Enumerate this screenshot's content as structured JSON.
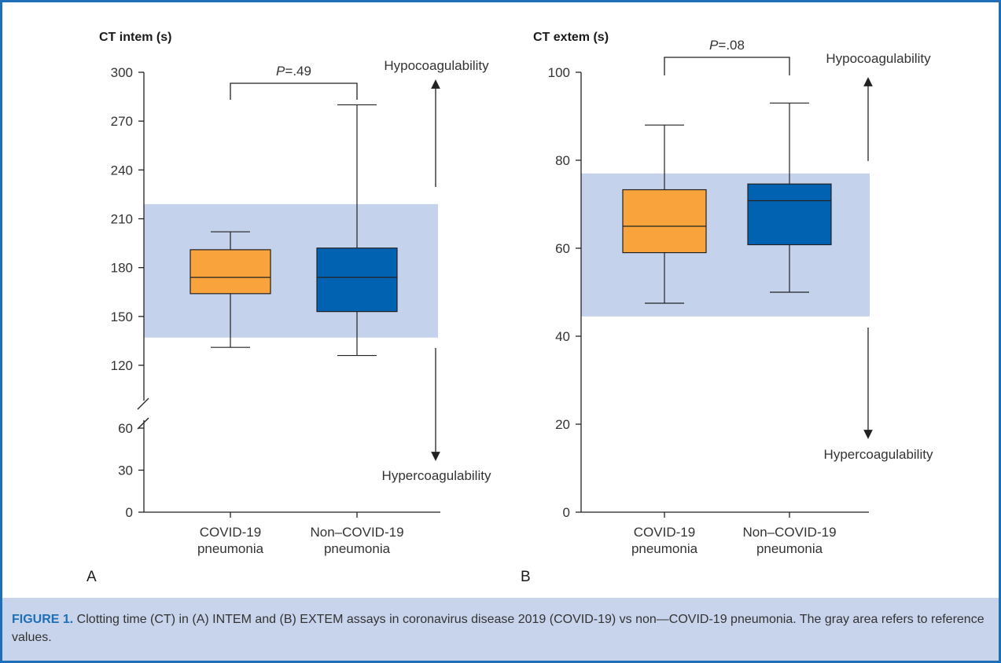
{
  "figure": {
    "caption_label": "FIGURE 1.",
    "caption_text": " Clotting time (CT) in (A) INTEM and (B) EXTEM assays in coronavirus disease 2019 (COVID-19) vs non—COVID-19 pneumonia. The gray area refers to reference values.",
    "colors": {
      "covid": "#f8a33c",
      "non_covid": "#0262b2",
      "reference_band": "#c5d2ec",
      "frame": "#1e6fb5"
    }
  },
  "chart_data": [
    {
      "type": "box",
      "panel_label": "A",
      "ylabel": "CT intem (s)",
      "axis_break": true,
      "ylim_lower": [
        0,
        60
      ],
      "ylim_upper": [
        120,
        300
      ],
      "yticks": [
        0,
        30,
        60,
        120,
        150,
        180,
        210,
        240,
        270,
        300
      ],
      "reference_band": [
        137,
        219
      ],
      "categories": [
        [
          "COVID-19",
          "pneumonia"
        ],
        [
          "Non–COVID-19",
          "pneumonia"
        ]
      ],
      "boxes": [
        {
          "whisker_low": 131,
          "q1": 164,
          "median": 174,
          "q3": 191,
          "whisker_high": 202
        },
        {
          "whisker_low": 126,
          "q1": 153,
          "median": 174,
          "q3": 192,
          "whisker_high": 280
        }
      ],
      "p_value_prefix": "P",
      "p_value_suffix": "=.49",
      "arrow_up_label": "Hypocoagulability",
      "arrow_down_label": "Hypercoagulability"
    },
    {
      "type": "box",
      "panel_label": "B",
      "ylabel": "CT extem (s)",
      "axis_break": false,
      "ylim": [
        0,
        100
      ],
      "yticks": [
        0,
        20,
        40,
        60,
        80,
        100
      ],
      "reference_band": [
        44.5,
        77
      ],
      "categories": [
        [
          "COVID-19",
          "pneumonia"
        ],
        [
          "Non–COVID-19",
          "pneumonia"
        ]
      ],
      "boxes": [
        {
          "whisker_low": 47.5,
          "q1": 59,
          "median": 65,
          "q3": 73.3,
          "whisker_high": 88
        },
        {
          "whisker_low": 50,
          "q1": 60.8,
          "median": 70.8,
          "q3": 74.6,
          "whisker_high": 93
        }
      ],
      "p_value_prefix": "P",
      "p_value_suffix": "=.08",
      "arrow_up_label": "Hypocoagulability",
      "arrow_down_label": "Hypercoagulability"
    }
  ]
}
